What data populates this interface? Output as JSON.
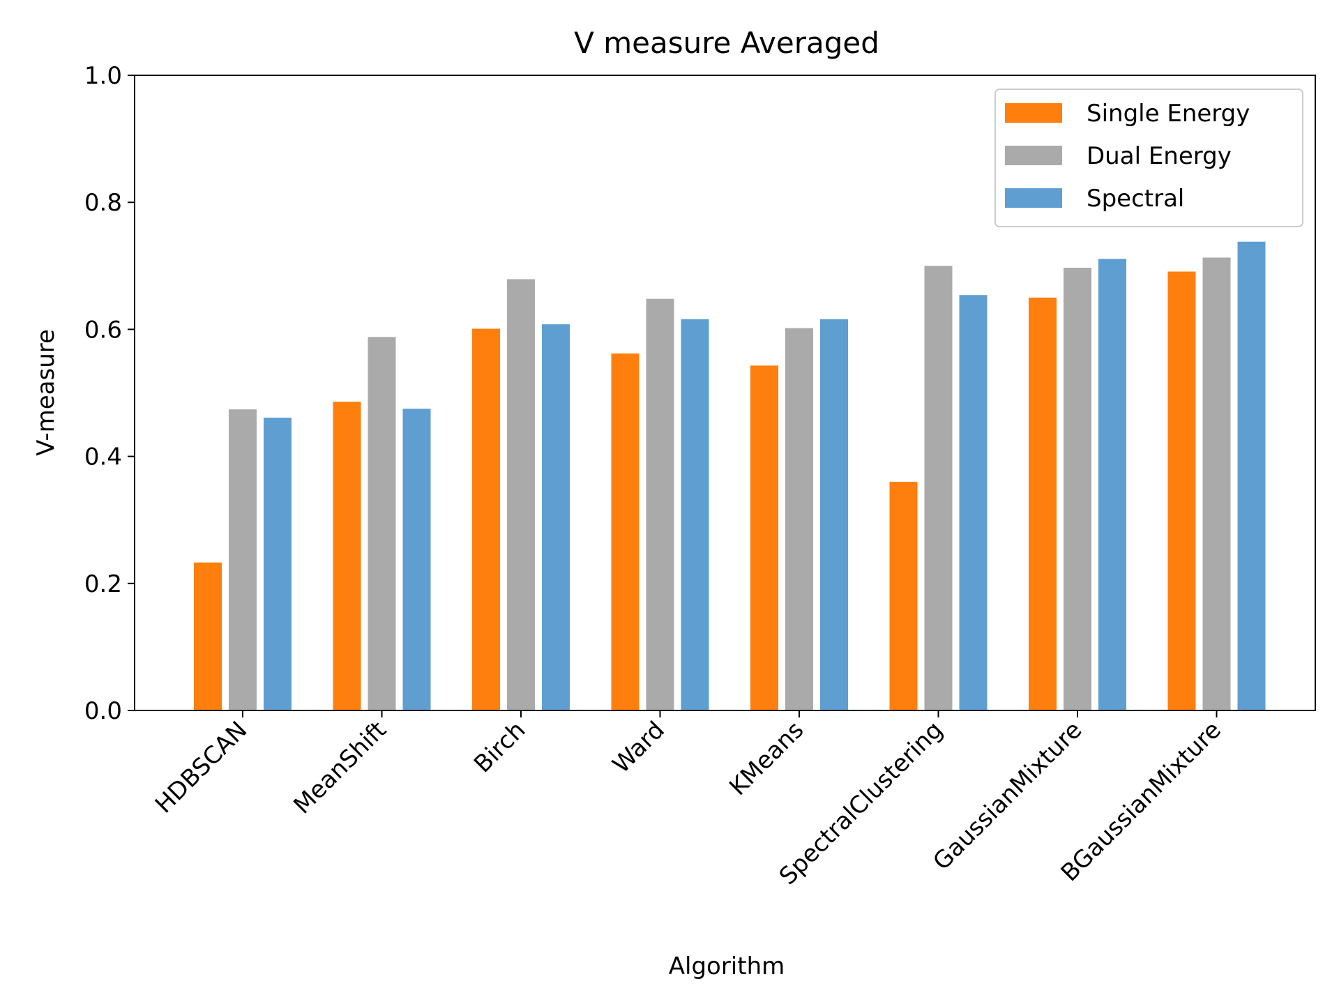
{
  "chart_data": {
    "type": "bar",
    "title": "V measure Averaged",
    "xlabel": "Algorithm",
    "ylabel": "V-measure",
    "ylim": [
      0,
      1.0
    ],
    "yticks": [
      0.0,
      0.2,
      0.4,
      0.6,
      0.8,
      1.0
    ],
    "ytick_labels": [
      "0.0",
      "0.2",
      "0.4",
      "0.6",
      "0.8",
      "1.0"
    ],
    "grid": false,
    "legend_position": "top-right",
    "categories": [
      "HDBSCAN",
      "MeanShift",
      "Birch",
      "Ward",
      "KMeans",
      "SpectralClustering",
      "GaussianMixture",
      "BGaussianMixture"
    ],
    "series": [
      {
        "name": "Single Energy",
        "color": "#ff7f0e",
        "values": [
          0.233,
          0.486,
          0.601,
          0.562,
          0.543,
          0.36,
          0.65,
          0.691
        ]
      },
      {
        "name": "Dual Energy",
        "color": "#aaaaaa",
        "values": [
          0.474,
          0.588,
          0.679,
          0.648,
          0.602,
          0.7,
          0.697,
          0.713
        ]
      },
      {
        "name": "Spectral",
        "color": "#5f9ed1",
        "values": [
          0.461,
          0.475,
          0.608,
          0.616,
          0.616,
          0.654,
          0.711,
          0.738
        ]
      }
    ]
  }
}
